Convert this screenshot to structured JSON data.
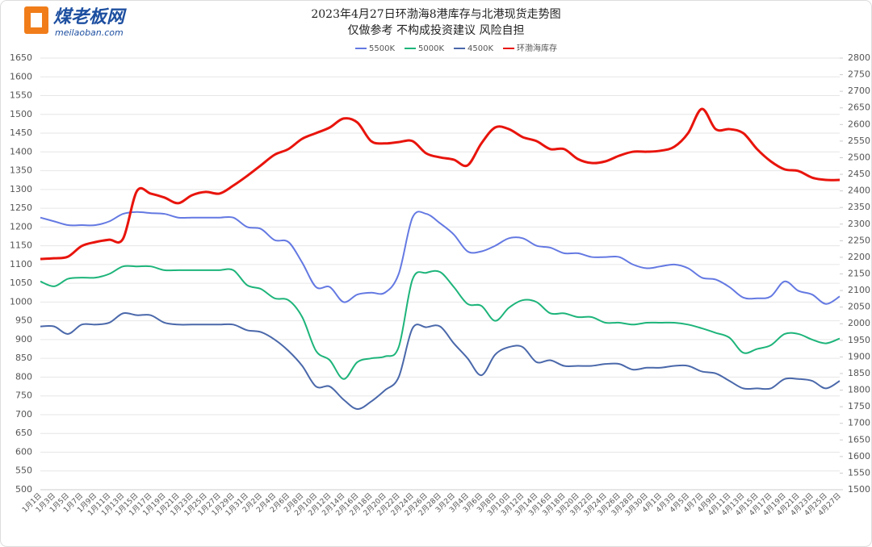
{
  "logo": {
    "brand": "煤老板网",
    "site": "meilaoban.com"
  },
  "chart_data": {
    "type": "line",
    "title": "2023年4月27日环渤海8港库存与北港现货走势图",
    "subtitle": "仅做参考 不构成投资建议 风险自担",
    "categories": [
      "1月1日",
      "1月3日",
      "1月5日",
      "1月7日",
      "1月9日",
      "1月11日",
      "1月13日",
      "1月15日",
      "1月17日",
      "1月19日",
      "1月21日",
      "1月23日",
      "1月25日",
      "1月27日",
      "1月29日",
      "1月31日",
      "2月2日",
      "2月4日",
      "2月6日",
      "2月8日",
      "2月10日",
      "2月12日",
      "2月14日",
      "2月16日",
      "2月18日",
      "2月20日",
      "2月22日",
      "2月24日",
      "2月26日",
      "2月28日",
      "3月2日",
      "3月4日",
      "3月6日",
      "3月8日",
      "3月10日",
      "3月12日",
      "3月14日",
      "3月16日",
      "3月18日",
      "3月20日",
      "3月22日",
      "3月24日",
      "3月26日",
      "3月28日",
      "3月30日",
      "4月1日",
      "4月3日",
      "4月5日",
      "4月7日",
      "4月9日",
      "4月11日",
      "4月13日",
      "4月15日",
      "4月17日",
      "4月19日",
      "4月21日",
      "4月23日",
      "4月25日",
      "4月27日"
    ],
    "series": [
      {
        "name": "5500K",
        "color": "#6479e2",
        "values": [
          1225,
          1215,
          1205,
          1205,
          1205,
          1215,
          1235,
          1240,
          1237,
          1235,
          1225,
          1225,
          1225,
          1225,
          1225,
          1200,
          1195,
          1165,
          1160,
          1105,
          1040,
          1040,
          1000,
          1020,
          1025,
          1025,
          1075,
          1225,
          1235,
          1210,
          1180,
          1135,
          1135,
          1150,
          1170,
          1170,
          1150,
          1145,
          1130,
          1130,
          1120,
          1120,
          1120,
          1100,
          1090,
          1095,
          1100,
          1090,
          1065,
          1060,
          1040,
          1012,
          1010,
          1015,
          1055,
          1030,
          1020,
          995,
          1015
        ]
      },
      {
        "name": "5000K",
        "color": "#1db47a",
        "values": [
          1055,
          1042,
          1062,
          1065,
          1065,
          1075,
          1095,
          1095,
          1095,
          1085,
          1085,
          1085,
          1085,
          1085,
          1085,
          1045,
          1035,
          1010,
          1005,
          960,
          870,
          845,
          795,
          840,
          850,
          855,
          880,
          1060,
          1078,
          1080,
          1040,
          995,
          990,
          950,
          985,
          1005,
          1000,
          970,
          970,
          960,
          960,
          945,
          945,
          940,
          945,
          945,
          945,
          940,
          930,
          918,
          905,
          865,
          875,
          885,
          915,
          915,
          900,
          890,
          903
        ]
      },
      {
        "name": "4500K",
        "color": "#4a68aa",
        "values": [
          935,
          935,
          915,
          940,
          940,
          945,
          970,
          965,
          965,
          945,
          940,
          940,
          940,
          940,
          940,
          925,
          920,
          900,
          870,
          830,
          775,
          775,
          740,
          715,
          735,
          765,
          800,
          930,
          933,
          935,
          890,
          850,
          805,
          860,
          880,
          880,
          840,
          845,
          830,
          830,
          830,
          835,
          835,
          820,
          825,
          825,
          830,
          830,
          815,
          810,
          790,
          770,
          770,
          770,
          795,
          795,
          790,
          770,
          790
        ]
      },
      {
        "name": "环渤海库存",
        "color": "#e8140c",
        "axis": "y2",
        "values": [
          2195,
          2197,
          2202,
          2234,
          2246,
          2253,
          2256,
          2399,
          2392,
          2380,
          2363,
          2387,
          2397,
          2392,
          2416,
          2445,
          2477,
          2509,
          2526,
          2557,
          2574,
          2591,
          2618,
          2606,
          2550,
          2543,
          2547,
          2550,
          2513,
          2501,
          2494,
          2477,
          2543,
          2591,
          2586,
          2562,
          2550,
          2526,
          2526,
          2496,
          2484,
          2489,
          2506,
          2518,
          2518,
          2521,
          2533,
          2574,
          2647,
          2586,
          2586,
          2574,
          2526,
          2489,
          2465,
          2460,
          2440,
          2433,
          2433
        ]
      }
    ],
    "ylim": [
      500,
      1650
    ],
    "yticks": [
      500,
      550,
      600,
      650,
      700,
      750,
      800,
      850,
      900,
      950,
      1000,
      1050,
      1100,
      1150,
      1200,
      1250,
      1300,
      1350,
      1400,
      1450,
      1500,
      1550,
      1600,
      1650
    ],
    "y2lim": [
      1500,
      2800
    ],
    "y2ticks": [
      1500,
      1550,
      1600,
      1650,
      1700,
      1750,
      1800,
      1850,
      1900,
      1950,
      2000,
      2050,
      2100,
      2150,
      2200,
      2250,
      2300,
      2350,
      2400,
      2450,
      2500,
      2550,
      2600,
      2650,
      2700,
      2750,
      2800
    ],
    "grid": true,
    "legend": "top"
  }
}
